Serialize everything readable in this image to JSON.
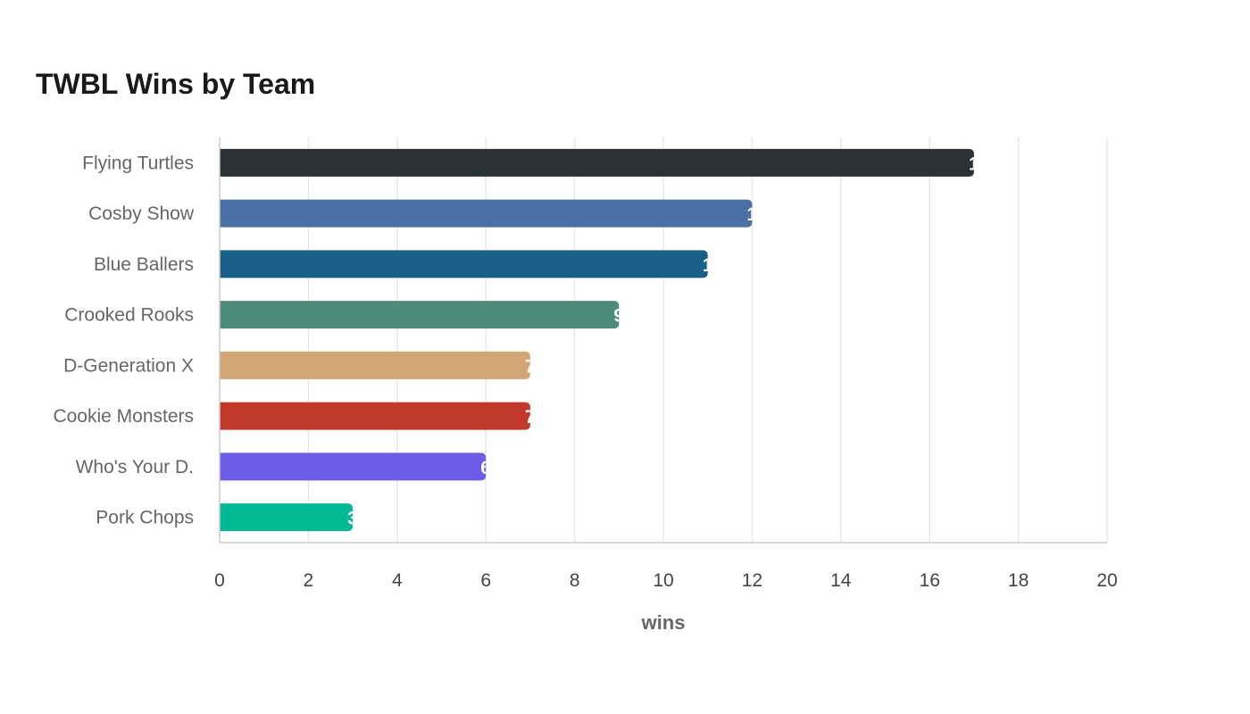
{
  "chart_data": {
    "type": "bar",
    "orientation": "horizontal",
    "title": "TWBL Wins by Team",
    "xlabel": "wins",
    "ylabel": "",
    "xlim": [
      0,
      20
    ],
    "x_ticks": [
      0,
      2,
      4,
      6,
      8,
      10,
      12,
      14,
      16,
      18,
      20
    ],
    "grid": true,
    "legend": "none",
    "categories": [
      "Flying Turtles",
      "Cosby Show",
      "Blue Ballers",
      "Crooked Rooks",
      "D-Generation X",
      "Cookie Monsters",
      "Who's Your D.",
      "Pork Chops"
    ],
    "values": [
      17,
      12,
      11,
      9,
      7,
      7,
      6,
      3
    ],
    "colors": [
      "#2b3337",
      "#4a70a6",
      "#186088",
      "#4e8b7a",
      "#d4a574",
      "#c0392b",
      "#6c5ce7",
      "#00b894"
    ],
    "gridline_color": "#e8e8e8",
    "axis_color": "#cccccc"
  }
}
